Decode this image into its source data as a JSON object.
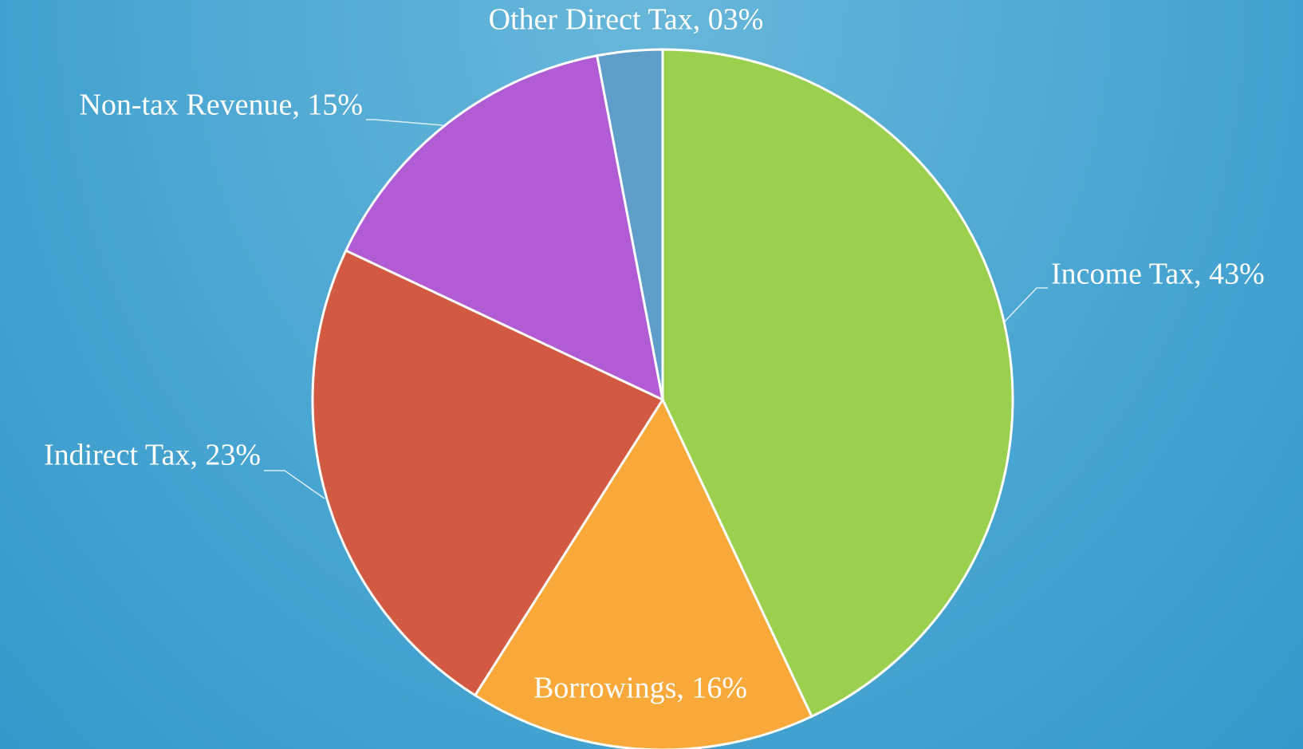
{
  "chart_data": {
    "type": "pie",
    "values": [
      43,
      16,
      23,
      15,
      3
    ],
    "value_labels": [
      "Income Tax, 43%",
      "Borrowings, 16%",
      "Indirect Tax, 23%",
      "Non-tax Revenue, 15%",
      "Other Direct Tax, 03%"
    ],
    "colors": [
      "#9bd04e",
      "#f9a83a",
      "#d35a42",
      "#b15bd4",
      "#5f9ec9"
    ],
    "start_angle": 0,
    "direction": "clockwise"
  }
}
